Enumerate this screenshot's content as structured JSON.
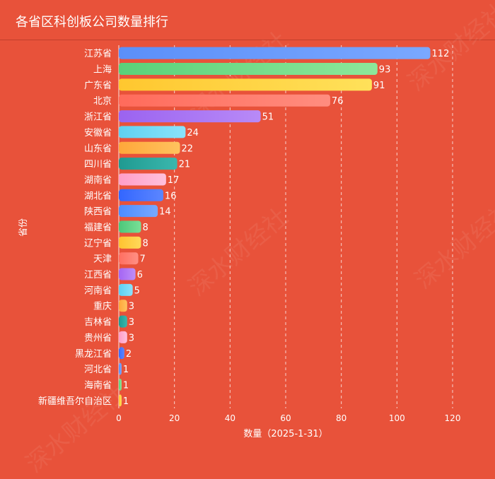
{
  "header": {
    "title": "各省区科创板公司数量排行"
  },
  "watermark_text": "深水财经社",
  "chart_data": {
    "type": "bar",
    "orientation": "horizontal",
    "title": "各省区科创板公司数量排行",
    "xlabel": "数量（2025-1-31）",
    "ylabel": "省份",
    "xlim": [
      0,
      120
    ],
    "xticks": [
      0,
      20,
      40,
      60,
      80,
      100,
      120
    ],
    "grid": true,
    "categories": [
      "江苏省",
      "上海",
      "广东省",
      "北京",
      "浙江省",
      "安徽省",
      "山东省",
      "四川省",
      "湖南省",
      "湖北省",
      "陕西省",
      "福建省",
      "辽宁省",
      "天津",
      "江西省",
      "河南省",
      "重庆",
      "吉林省",
      "贵州省",
      "黑龙江省",
      "河北省",
      "海南省",
      "新疆维吾尔自治区"
    ],
    "values": [
      112,
      93,
      91,
      76,
      51,
      24,
      22,
      21,
      17,
      16,
      14,
      8,
      8,
      7,
      6,
      5,
      3,
      3,
      3,
      2,
      1,
      1,
      1
    ],
    "bar_colors": [
      [
        "#5b8ff9",
        "#7aa8ff"
      ],
      [
        "#5ad179",
        "#8de79a"
      ],
      [
        "#ffc72f",
        "#ffe15a"
      ],
      [
        "#ff6b5b",
        "#ff8d7f"
      ],
      [
        "#9b63f0",
        "#b88af7"
      ],
      [
        "#5fd0f0",
        "#8ae3fb"
      ],
      [
        "#ffa73a",
        "#ffc25e"
      ],
      [
        "#1f9a91",
        "#3bb7ad"
      ],
      [
        "#ff9ec8",
        "#ffc0dc"
      ],
      [
        "#3366ff",
        "#5c86ff"
      ],
      [
        "#4e8cff",
        "#78a9ff"
      ],
      [
        "#4cc77a",
        "#7adf96"
      ],
      [
        "#ffc230",
        "#ffd95a"
      ],
      [
        "#ff6e60",
        "#ff8f84"
      ],
      [
        "#a465f3",
        "#bf8df8"
      ],
      [
        "#5ccff2",
        "#8ce2fb"
      ],
      [
        "#ffa63a",
        "#ffc25e"
      ],
      [
        "#1f9b92",
        "#3bb7ad"
      ],
      [
        "#ff9cc6",
        "#ffc0dc"
      ],
      [
        "#3b6cff",
        "#5c86ff"
      ],
      [
        "#5b8ff9",
        "#7aa8ff"
      ],
      [
        "#5ad179",
        "#8de79a"
      ],
      [
        "#ffc72f",
        "#ffe15a"
      ]
    ]
  }
}
